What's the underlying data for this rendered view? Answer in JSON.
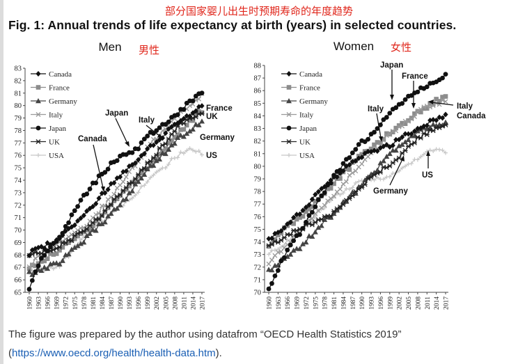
{
  "header": {
    "chinese_title": "部分国家婴儿出生时预期寿命的年度趋势",
    "figure_title": "Fig. 1: Annual trends of life expectancy at birth (years) in selected countries."
  },
  "footer": {
    "text_before": "The figure was prepared by the author using datafrom “OECD Health Statistics 2019”",
    "open_paren": "(",
    "link_text": "https://www.oecd.org/health/health-data.htm",
    "close_paren": ")."
  },
  "colors": {
    "Canada": "#111111",
    "France": "#8c8c8c",
    "Germany": "#444444",
    "Italy": "#999999",
    "Japan": "#111111",
    "UK": "#222222",
    "USA": "#c8c8c8",
    "accent_red": "#e0261b"
  },
  "chart_data": [
    {
      "type": "line",
      "title": "Men",
      "title_cn": "男性",
      "ylim": [
        65,
        83
      ],
      "yticks": [
        65,
        66,
        67,
        68,
        69,
        70,
        71,
        72,
        73,
        74,
        75,
        76,
        77,
        78,
        79,
        80,
        81,
        82,
        83
      ],
      "xticks": [
        1960,
        1963,
        1966,
        1969,
        1972,
        1975,
        1978,
        1981,
        1984,
        1987,
        1990,
        1993,
        1996,
        1999,
        2002,
        2005,
        2008,
        2011,
        2014,
        2017
      ],
      "xlim": [
        1960,
        2017
      ],
      "grid": false,
      "legend": "top-left",
      "legend_entries": [
        "Canada",
        "France",
        "Germany",
        "Italy",
        "Japan",
        "UK",
        "USA"
      ],
      "series": [
        {
          "name": "Canada",
          "marker": "diamond",
          "points": [
            [
              1960,
              68.1
            ],
            [
              1970,
              69.3
            ],
            [
              1980,
              71.7
            ],
            [
              1990,
              74.4
            ],
            [
              2000,
              76.7
            ],
            [
              2010,
              78.8
            ],
            [
              2017,
              79.9
            ]
          ]
        },
        {
          "name": "France",
          "marker": "square",
          "points": [
            [
              1960,
              66.9
            ],
            [
              1970,
              68.4
            ],
            [
              1980,
              70.2
            ],
            [
              1990,
              72.8
            ],
            [
              2000,
              75.3
            ],
            [
              2010,
              78.0
            ],
            [
              2017,
              79.6
            ]
          ]
        },
        {
          "name": "Germany",
          "marker": "triangle",
          "points": [
            [
              1960,
              66.5
            ],
            [
              1970,
              67.4
            ],
            [
              1980,
              69.6
            ],
            [
              1990,
              72.0
            ],
            [
              2000,
              75.1
            ],
            [
              2010,
              77.5
            ],
            [
              2017,
              78.7
            ]
          ]
        },
        {
          "name": "Italy",
          "marker": "x",
          "points": [
            [
              1960,
              67.2
            ],
            [
              1970,
              69.0
            ],
            [
              1980,
              70.6
            ],
            [
              1990,
              73.6
            ],
            [
              2000,
              76.9
            ],
            [
              2010,
              79.4
            ],
            [
              2017,
              80.8
            ]
          ]
        },
        {
          "name": "Japan",
          "marker": "circle",
          "points": [
            [
              1960,
              65.3
            ],
            [
              1963,
              67.2
            ],
            [
              1966,
              68.4
            ],
            [
              1970,
              69.3
            ],
            [
              1975,
              71.7
            ],
            [
              1980,
              73.4
            ],
            [
              1985,
              74.8
            ],
            [
              1990,
              75.9
            ],
            [
              1995,
              76.4
            ],
            [
              2000,
              77.7
            ],
            [
              2005,
              78.6
            ],
            [
              2010,
              79.6
            ],
            [
              2014,
              80.5
            ],
            [
              2017,
              81.1
            ]
          ]
        },
        {
          "name": "UK",
          "marker": "star",
          "points": [
            [
              1960,
              67.9
            ],
            [
              1970,
              68.7
            ],
            [
              1980,
              70.2
            ],
            [
              1990,
              72.9
            ],
            [
              2000,
              75.5
            ],
            [
              2010,
              78.6
            ],
            [
              2017,
              79.5
            ]
          ]
        },
        {
          "name": "USA",
          "marker": "plus",
          "points": [
            [
              1960,
              66.6
            ],
            [
              1970,
              67.1
            ],
            [
              1980,
              70.0
            ],
            [
              1990,
              71.8
            ],
            [
              2000,
              74.1
            ],
            [
              2010,
              76.2
            ],
            [
              2014,
              76.5
            ],
            [
              2017,
              76.1
            ]
          ]
        }
      ],
      "annotations": [
        "Japan",
        "Canada",
        "Italy",
        "France",
        "UK",
        "Germany",
        "US"
      ]
    },
    {
      "type": "line",
      "title": "Women",
      "title_cn": "女性",
      "ylim": [
        70,
        88
      ],
      "yticks": [
        70,
        71,
        72,
        73,
        74,
        75,
        76,
        77,
        78,
        79,
        80,
        81,
        82,
        83,
        84,
        85,
        86,
        87,
        88
      ],
      "xticks": [
        1960,
        1963,
        1966,
        1969,
        1972,
        1975,
        1978,
        1981,
        1984,
        1987,
        1990,
        1993,
        1996,
        1999,
        2002,
        2005,
        2008,
        2011,
        2014,
        2017
      ],
      "xlim": [
        1960,
        2017
      ],
      "grid": false,
      "legend": "top-left",
      "legend_entries": [
        "Canada",
        "France",
        "Germany",
        "Italy",
        "Japan",
        "UK",
        "USA"
      ],
      "series": [
        {
          "name": "Canada",
          "marker": "diamond",
          "points": [
            [
              1960,
              74.2
            ],
            [
              1970,
              76.3
            ],
            [
              1980,
              78.9
            ],
            [
              1990,
              80.8
            ],
            [
              2000,
              81.8
            ],
            [
              2010,
              83.3
            ],
            [
              2017,
              84.0
            ]
          ]
        },
        {
          "name": "France",
          "marker": "square",
          "points": [
            [
              1960,
              73.6
            ],
            [
              1965,
              75.1
            ],
            [
              1970,
              75.9
            ],
            [
              1980,
              78.4
            ],
            [
              1990,
              80.9
            ],
            [
              2000,
              82.8
            ],
            [
              2010,
              84.6
            ],
            [
              2017,
              85.6
            ]
          ]
        },
        {
          "name": "Germany",
          "marker": "triangle",
          "points": [
            [
              1960,
              71.7
            ],
            [
              1970,
              73.6
            ],
            [
              1980,
              76.1
            ],
            [
              1990,
              78.5
            ],
            [
              2000,
              81.2
            ],
            [
              2010,
              83.0
            ],
            [
              2017,
              83.4
            ]
          ]
        },
        {
          "name": "Italy",
          "marker": "x",
          "points": [
            [
              1960,
              72.3
            ],
            [
              1970,
              74.9
            ],
            [
              1980,
              77.4
            ],
            [
              1990,
              80.3
            ],
            [
              2000,
              82.8
            ],
            [
              2010,
              84.6
            ],
            [
              2017,
              85.2
            ]
          ]
        },
        {
          "name": "Japan",
          "marker": "circle",
          "points": [
            [
              1960,
              70.2
            ],
            [
              1965,
              72.9
            ],
            [
              1970,
              74.7
            ],
            [
              1975,
              76.9
            ],
            [
              1980,
              78.8
            ],
            [
              1985,
              80.5
            ],
            [
              1990,
              81.9
            ],
            [
              1995,
              82.9
            ],
            [
              2000,
              84.6
            ],
            [
              2005,
              85.5
            ],
            [
              2010,
              86.3
            ],
            [
              2014,
              86.8
            ],
            [
              2017,
              87.3
            ]
          ]
        },
        {
          "name": "UK",
          "marker": "star",
          "points": [
            [
              1960,
              73.7
            ],
            [
              1970,
              75.0
            ],
            [
              1980,
              76.2
            ],
            [
              1990,
              78.5
            ],
            [
              2000,
              80.3
            ],
            [
              2010,
              82.6
            ],
            [
              2017,
              83.1
            ]
          ]
        },
        {
          "name": "USA",
          "marker": "plus",
          "points": [
            [
              1960,
              73.1
            ],
            [
              1970,
              74.7
            ],
            [
              1980,
              77.4
            ],
            [
              1990,
              78.8
            ],
            [
              2000,
              79.3
            ],
            [
              2010,
              81.0
            ],
            [
              2014,
              81.3
            ],
            [
              2017,
              81.1
            ]
          ]
        }
      ],
      "annotations": [
        "Japan",
        "France",
        "Italy",
        "Canada",
        "Germany",
        "US"
      ]
    }
  ]
}
